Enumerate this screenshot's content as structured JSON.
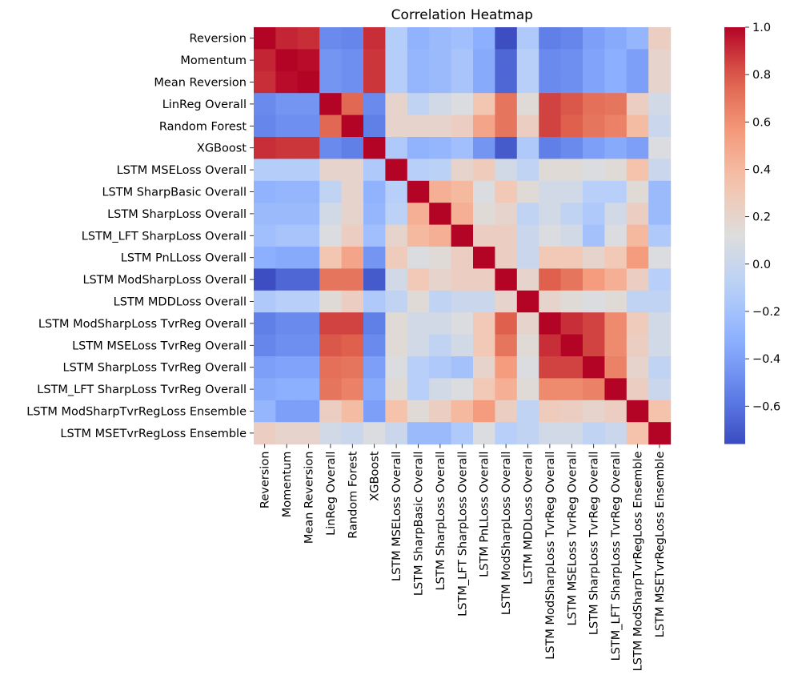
{
  "chart_data": {
    "type": "heatmap",
    "title": "Correlation Heatmap",
    "xlabel": "",
    "ylabel": "",
    "labels": [
      "Reversion",
      "Momentum",
      "Mean Reversion",
      "LinReg Overall",
      "Random Forest",
      "XGBoost",
      "LSTM MSELoss Overall",
      "LSTM SharpBasic Overall",
      "LSTM SharpLoss Overall",
      "LSTM_LFT SharpLoss Overall",
      "LSTM PnLLoss Overall",
      "LSTM ModSharpLoss Overall",
      "LSTM MDDLoss Overall",
      "LSTM ModSharpLoss TvrReg Overall",
      "LSTM MSELoss TvrReg Overall",
      "LSTM SharpLoss TvrReg Overall",
      "LSTM_LFT SharpLoss TvrReg Overall",
      "LSTM ModSharpTvrRegLoss Ensemble",
      "LSTM MSETvrRegLoss Ensemble"
    ],
    "matrix": [
      [
        1.0,
        0.92,
        0.9,
        -0.5,
        -0.52,
        0.9,
        -0.12,
        -0.3,
        -0.25,
        -0.22,
        -0.32,
        -0.75,
        -0.15,
        -0.55,
        -0.52,
        -0.4,
        -0.35,
        -0.28,
        0.25
      ],
      [
        0.92,
        1.0,
        0.98,
        -0.45,
        -0.48,
        0.88,
        -0.12,
        -0.28,
        -0.25,
        -0.18,
        -0.35,
        -0.65,
        -0.1,
        -0.5,
        -0.48,
        -0.38,
        -0.32,
        -0.4,
        0.2
      ],
      [
        0.9,
        0.98,
        1.0,
        -0.45,
        -0.48,
        0.88,
        -0.12,
        -0.28,
        -0.25,
        -0.18,
        -0.35,
        -0.65,
        -0.1,
        -0.5,
        -0.48,
        -0.38,
        -0.32,
        -0.4,
        0.2
      ],
      [
        -0.5,
        -0.45,
        -0.45,
        1.0,
        0.75,
        -0.5,
        0.2,
        -0.05,
        0.05,
        0.1,
        0.32,
        0.7,
        0.15,
        0.85,
        0.8,
        0.72,
        0.7,
        0.25,
        0.05
      ],
      [
        -0.52,
        -0.48,
        -0.48,
        0.75,
        1.0,
        -0.55,
        0.2,
        0.2,
        0.2,
        0.25,
        0.5,
        0.7,
        0.25,
        0.85,
        0.78,
        0.7,
        0.65,
        0.38,
        0.0
      ],
      [
        0.9,
        0.88,
        0.88,
        -0.5,
        -0.55,
        1.0,
        -0.15,
        -0.3,
        -0.28,
        -0.22,
        -0.45,
        -0.7,
        -0.15,
        -0.55,
        -0.5,
        -0.4,
        -0.35,
        -0.4,
        0.1
      ],
      [
        -0.12,
        -0.12,
        -0.12,
        0.2,
        0.2,
        -0.15,
        1.0,
        -0.1,
        -0.08,
        0.2,
        0.28,
        0.05,
        -0.05,
        0.15,
        0.15,
        0.1,
        0.15,
        0.35,
        0.0
      ],
      [
        -0.3,
        -0.28,
        -0.28,
        -0.05,
        0.2,
        -0.3,
        -0.1,
        1.0,
        0.45,
        0.4,
        0.1,
        0.3,
        0.15,
        0.05,
        0.05,
        -0.1,
        -0.1,
        0.15,
        -0.25
      ],
      [
        -0.25,
        -0.25,
        -0.25,
        0.05,
        0.2,
        -0.28,
        -0.08,
        0.45,
        1.0,
        0.45,
        0.15,
        0.2,
        -0.05,
        0.05,
        -0.05,
        -0.15,
        0.05,
        0.25,
        -0.25
      ],
      [
        -0.22,
        -0.18,
        -0.18,
        0.1,
        0.25,
        -0.22,
        0.2,
        0.4,
        0.45,
        1.0,
        0.25,
        0.25,
        0.0,
        0.1,
        0.05,
        -0.2,
        0.1,
        0.4,
        -0.15
      ],
      [
        -0.32,
        -0.35,
        -0.35,
        0.32,
        0.5,
        -0.45,
        0.28,
        0.1,
        0.15,
        0.25,
        1.0,
        0.25,
        0.0,
        0.3,
        0.3,
        0.2,
        0.3,
        0.55,
        0.1
      ],
      [
        -0.75,
        -0.65,
        -0.65,
        0.7,
        0.7,
        -0.7,
        0.05,
        0.3,
        0.2,
        0.25,
        0.25,
        1.0,
        0.2,
        0.78,
        0.7,
        0.55,
        0.45,
        0.25,
        -0.1
      ],
      [
        -0.15,
        -0.1,
        -0.1,
        0.15,
        0.25,
        -0.15,
        -0.05,
        0.15,
        -0.05,
        0.0,
        0.0,
        0.2,
        1.0,
        0.2,
        0.15,
        0.1,
        0.15,
        -0.05,
        -0.05
      ],
      [
        -0.55,
        -0.5,
        -0.5,
        0.85,
        0.85,
        -0.55,
        0.15,
        0.05,
        0.05,
        0.1,
        0.3,
        0.78,
        0.2,
        1.0,
        0.9,
        0.85,
        0.62,
        0.28,
        0.05
      ],
      [
        -0.52,
        -0.48,
        -0.48,
        0.8,
        0.78,
        -0.5,
        0.15,
        0.05,
        -0.05,
        0.05,
        0.3,
        0.7,
        0.15,
        0.9,
        1.0,
        0.85,
        0.62,
        0.25,
        0.05
      ],
      [
        -0.4,
        -0.38,
        -0.38,
        0.72,
        0.7,
        -0.4,
        0.1,
        -0.1,
        -0.15,
        -0.2,
        0.2,
        0.55,
        0.1,
        0.85,
        0.85,
        1.0,
        0.65,
        0.2,
        -0.05
      ],
      [
        -0.35,
        -0.32,
        -0.32,
        0.7,
        0.65,
        -0.35,
        0.15,
        -0.1,
        0.05,
        0.1,
        0.3,
        0.45,
        0.15,
        0.62,
        0.62,
        0.65,
        1.0,
        0.25,
        0.0
      ],
      [
        -0.28,
        -0.4,
        -0.4,
        0.25,
        0.38,
        -0.4,
        0.35,
        0.15,
        0.25,
        0.4,
        0.55,
        0.25,
        -0.05,
        0.28,
        0.25,
        0.2,
        0.25,
        1.0,
        0.35
      ],
      [
        0.25,
        0.2,
        0.2,
        0.05,
        0.0,
        0.1,
        0.0,
        -0.25,
        -0.25,
        -0.15,
        0.1,
        -0.1,
        -0.05,
        0.05,
        0.05,
        -0.05,
        0.0,
        0.35,
        1.0
      ]
    ],
    "colormap": "coolwarm",
    "vmin": -0.76,
    "vmax": 1.0,
    "colorbar_ticks": [
      -0.6,
      -0.4,
      -0.2,
      0.0,
      0.2,
      0.4,
      0.6,
      0.8,
      1.0
    ],
    "colorbar_tick_labels": [
      "−0.6",
      "−0.4",
      "−0.2",
      "0.0",
      "0.2",
      "0.4",
      "0.6",
      "0.8",
      "1.0"
    ]
  }
}
